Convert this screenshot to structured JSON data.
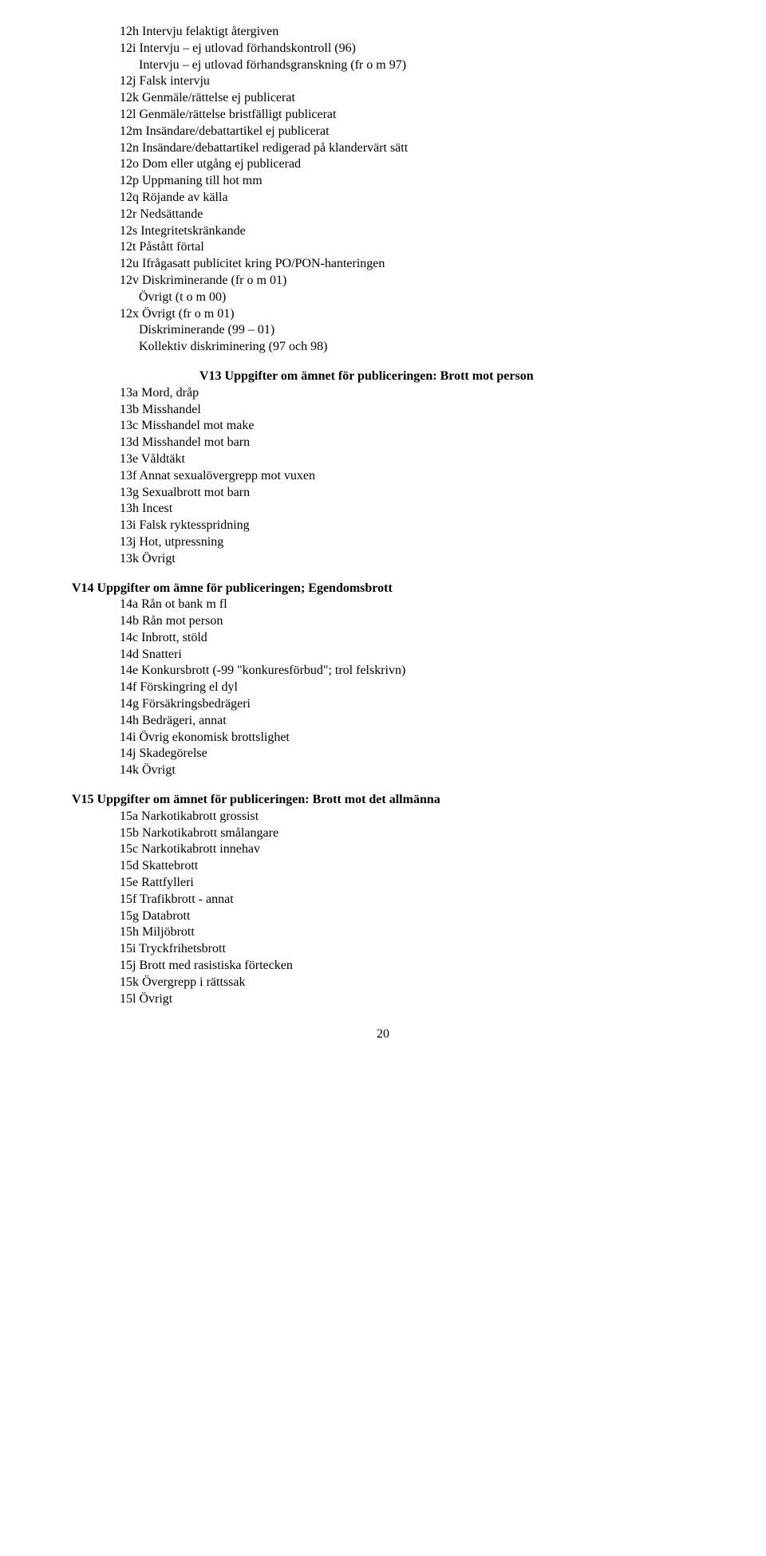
{
  "v12_continued": [
    "12h Intervju felaktigt återgiven",
    "12i Intervju – ej utlovad förhandskontroll (96)",
    "      Intervju – ej utlovad förhandsgranskning (fr o m 97)",
    "12j Falsk intervju",
    "12k Genmäle/rättelse ej publicerat",
    "12l Genmäle/rättelse bristfälligt publicerat",
    "12m Insändare/debattartikel ej publicerat",
    "12n Insändare/debattartikel redigerad på klandervärt sätt",
    "12o Dom eller utgång ej publicerad",
    "12p Uppmaning till hot mm",
    "12q Röjande av källa",
    "12r Nedsättande",
    "12s Integritetskränkande",
    "12t Påstått förtal",
    "12u Ifrågasatt publicitet kring PO/PON-hanteringen",
    "12v Diskriminerande (fr o m 01)",
    "      Övrigt (t o m 00)",
    "12x Övrigt (fr o m 01)",
    "      Diskriminerande (99 – 01)",
    "      Kollektiv diskriminering (97 och 98)"
  ],
  "v13": {
    "heading": "V13 Uppgifter om ämnet för publiceringen: Brott mot person",
    "items": [
      "13a Mord, dråp",
      "13b Misshandel",
      "13c Misshandel mot make",
      "13d Misshandel mot barn",
      "13e Våldtäkt",
      "13f Annat sexualövergrepp mot vuxen",
      "13g Sexualbrott mot barn",
      "13h Incest",
      "13i Falsk ryktesspridning",
      "13j Hot, utpressning",
      "13k Övrigt"
    ]
  },
  "v14": {
    "heading": "V14 Uppgifter om ämne för publiceringen; Egendomsbrott",
    "items": [
      "14a Rån ot bank m fl",
      "14b Rån mot person",
      "14c Inbrott, stöld",
      "14d Snatteri",
      "14e Konkursbrott (-99 \"konkuresförbud\"; trol felskrivn)",
      "14f Förskingring el dyl",
      "14g Försäkringsbedrägeri",
      "14h Bedrägeri, annat",
      "14i Övrig ekonomisk brottslighet",
      "14j Skadegörelse",
      "14k Övrigt"
    ]
  },
  "v15": {
    "heading": "V15 Uppgifter om ämnet för publiceringen: Brott mot det allmänna",
    "items": [
      "15a Narkotikabrott grossist",
      "15b Narkotikabrott smålangare",
      "15c Narkotikabrott innehav",
      "15d Skattebrott",
      "15e Rattfylleri",
      "15f Trafikbrott - annat",
      "15g Databrott",
      "15h Miljöbrott",
      "15i Tryckfrihetsbrott",
      "15j Brott med rasistiska förtecken",
      "15k Övergrepp i rättssak",
      "15l Övrigt"
    ]
  },
  "page_number": "20"
}
